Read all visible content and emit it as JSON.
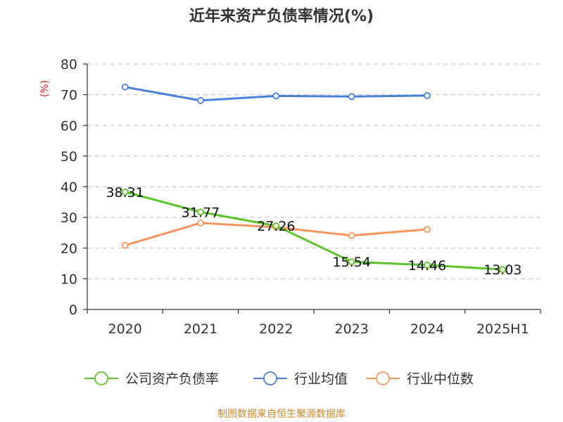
{
  "chart_data": {
    "type": "line",
    "title": "近年来资产负债率情况(%)",
    "ylabel": "(%)",
    "categories": [
      "2020",
      "2021",
      "2022",
      "2023",
      "2024",
      "2025H1"
    ],
    "ylim": [
      0,
      80
    ],
    "yticks": [
      0,
      10,
      20,
      30,
      40,
      50,
      60,
      70,
      80
    ],
    "grid": true,
    "legend_position": "bottom",
    "series": [
      {
        "name": "公司资产负债率",
        "color": "#5cc42a",
        "values": [
          38.31,
          31.77,
          27.26,
          15.54,
          14.46,
          13.03
        ],
        "show_labels": true
      },
      {
        "name": "行业均值",
        "color": "#4a7fdb",
        "values": [
          72.5,
          68.1,
          69.6,
          69.4,
          69.7,
          null
        ],
        "show_labels": false
      },
      {
        "name": "行业中位数",
        "color": "#f7955e",
        "values": [
          20.9,
          28.2,
          26.8,
          24.1,
          26.1,
          null
        ],
        "show_labels": false
      }
    ]
  },
  "footer": "制图数据来自恒生聚源数据库",
  "colors": {
    "axis": "#333333",
    "grid": "#cccccc",
    "ylabel": "#e02020",
    "footer": "#c9882f"
  }
}
